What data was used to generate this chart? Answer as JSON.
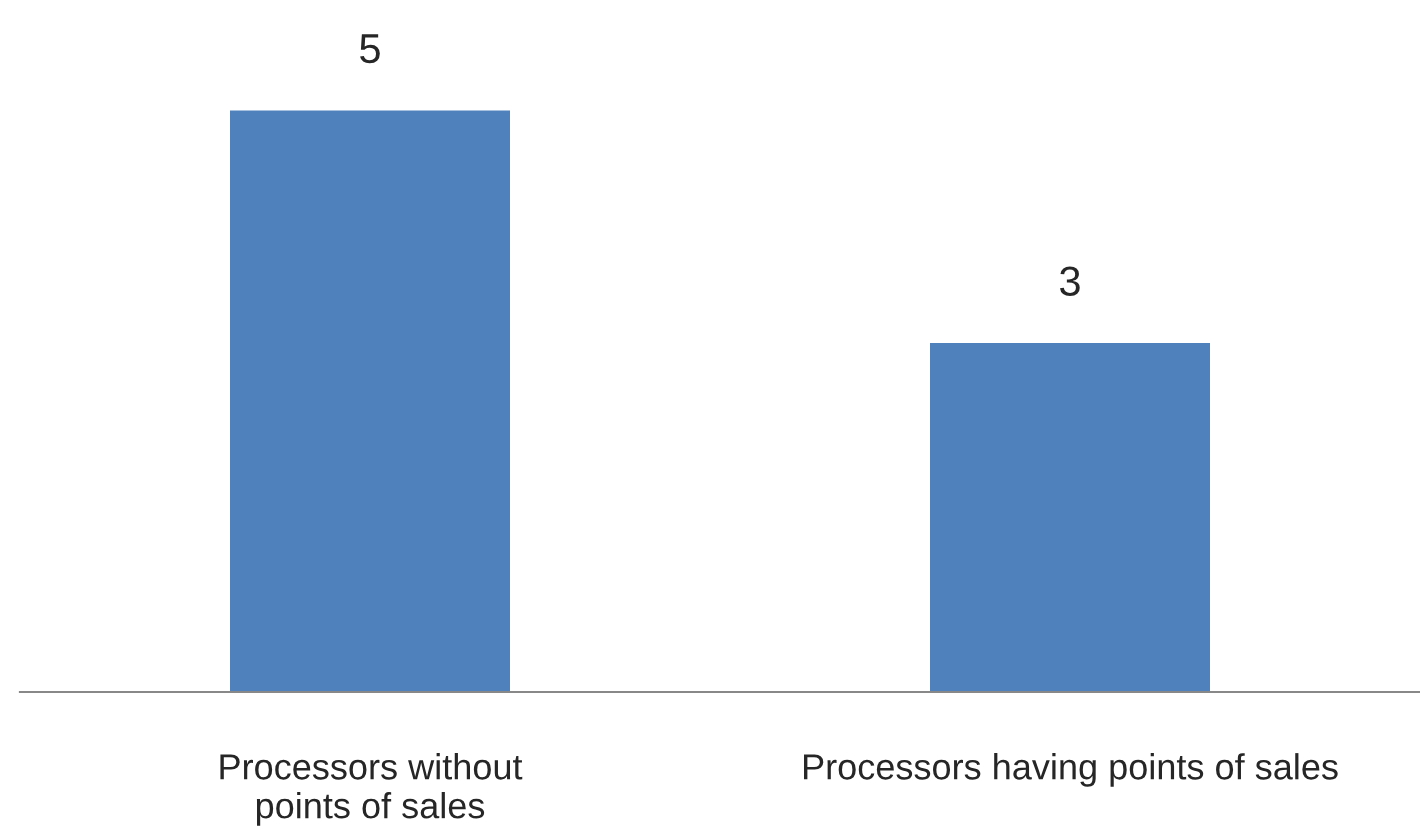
{
  "chart_data": {
    "type": "bar",
    "categories": [
      "Processors without\npoints of sales",
      "Processors having points of sales"
    ],
    "values": [
      5,
      3
    ],
    "color": "#4f81bd",
    "data_labels": true,
    "grid": false,
    "legend": false
  }
}
